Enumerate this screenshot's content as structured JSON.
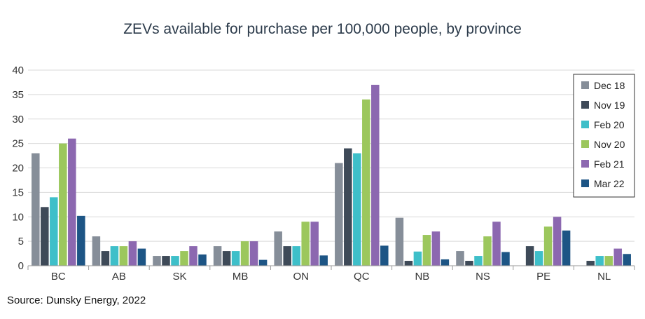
{
  "chart_data": {
    "type": "bar",
    "title": "ZEVs available for purchase per 100,000 people, by province",
    "categories": [
      "BC",
      "AB",
      "SK",
      "MB",
      "ON",
      "QC",
      "NB",
      "NS",
      "PE",
      "NL"
    ],
    "series": [
      {
        "name": "Dec 18",
        "color": "#868e99",
        "values": [
          23,
          6,
          2,
          4,
          7,
          21,
          9.8,
          3,
          0,
          0
        ]
      },
      {
        "name": "Nov 19",
        "color": "#3e4a58",
        "values": [
          12,
          3,
          2,
          3,
          4,
          24,
          1,
          1,
          4,
          1
        ]
      },
      {
        "name": "Feb 20",
        "color": "#3ebfc9",
        "values": [
          14,
          4,
          2,
          3,
          4,
          23,
          2.9,
          2,
          3,
          2
        ]
      },
      {
        "name": "Nov 20",
        "color": "#9cc75d",
        "values": [
          25,
          4,
          3,
          5,
          9,
          34,
          6.3,
          6,
          8,
          2
        ]
      },
      {
        "name": "Feb 21",
        "color": "#8c68b0",
        "values": [
          26,
          5,
          4,
          5,
          9,
          37,
          7,
          9,
          10,
          3.5
        ]
      },
      {
        "name": "Mar 22",
        "color": "#1d5585",
        "values": [
          10.2,
          3.5,
          2.3,
          1.2,
          2.1,
          4.1,
          1.3,
          2.8,
          7.2,
          2.4
        ]
      }
    ],
    "yticks": [
      0,
      5,
      10,
      15,
      20,
      25,
      30,
      35,
      40
    ],
    "ylim": [
      0,
      40
    ],
    "xlabel": "",
    "ylabel": "",
    "grid": true,
    "legend": "top-right",
    "source": "Source: Dunsky Energy, 2022"
  }
}
